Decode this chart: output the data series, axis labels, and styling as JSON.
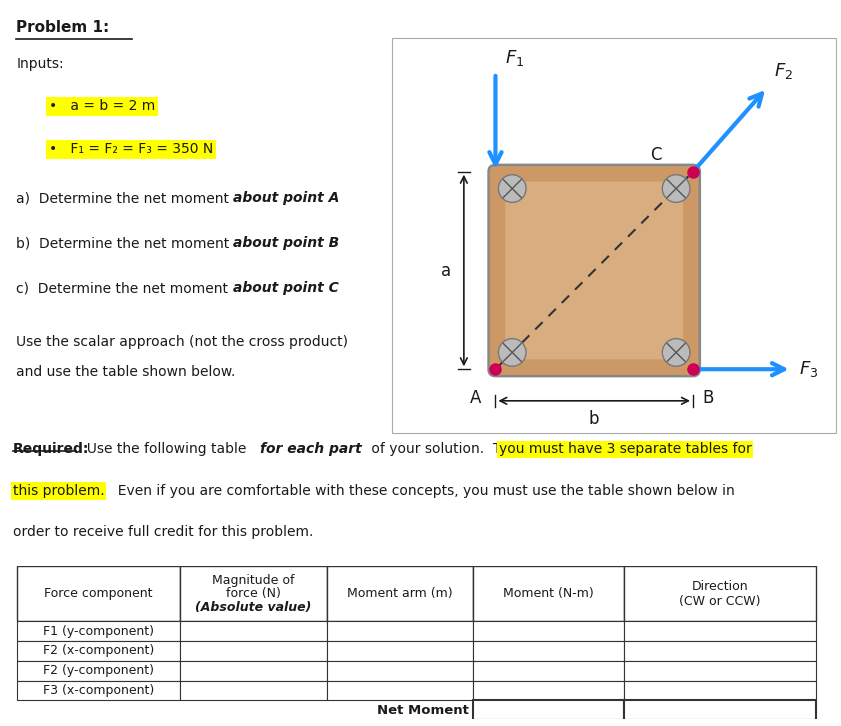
{
  "title": "Problem 1:",
  "inputs_label": "Inputs:",
  "bullet1": "a = b = 2 m",
  "bullet2": "F₁ = F₂ = F₃ = 350 N",
  "part_a_plain": "a)  Determine the net moment ",
  "part_a_bold": "about point A",
  "part_b_plain": "b)  Determine the net moment ",
  "part_b_bold": "about point B",
  "part_c_plain": "c)  Determine the net moment ",
  "part_c_bold": "about point C",
  "scalar_line1": "Use the scalar approach (not the cross product)",
  "scalar_line2": "and use the table shown below.",
  "table_col0": "Force component",
  "table_col1a": "Magnitude of",
  "table_col1b": "force (N)",
  "table_col1c": "(Absolute value)",
  "table_col2": "Moment arm (m)",
  "table_col3": "Moment (N-m)",
  "table_col4a": "Direction",
  "table_col4b": "(CW or CCW)",
  "table_rows": [
    "F1 (y-component)",
    "F2 (x-component)",
    "F2 (y-component)",
    "F3 (x-component)"
  ],
  "net_moment_label": "Net Moment",
  "highlight_yellow": "#FFFF00",
  "arrow_color": "#1E90FF",
  "text_color": "#1a1a1a",
  "bg_color": "#FFFFFF",
  "plate_fill": "#CC9966",
  "plate_highlight": "#E8C8A0",
  "point_color": "#CC0055",
  "screw_color": "#BBBBBB",
  "border_color": "#555555"
}
